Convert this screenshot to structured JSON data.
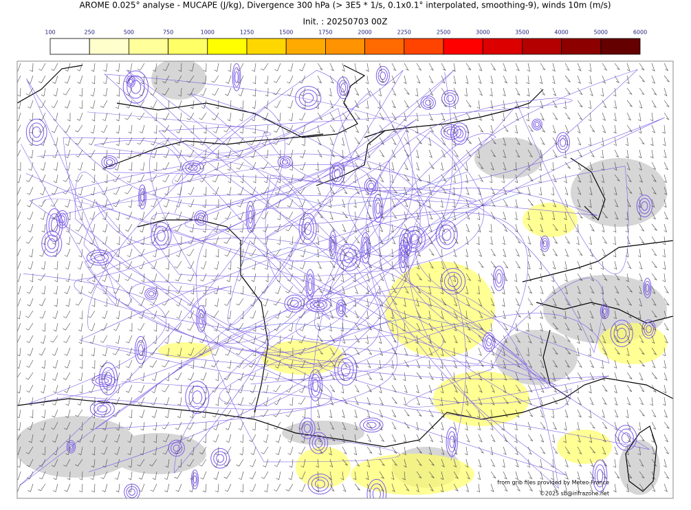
{
  "header": {
    "title": "AROME 0.025° analyse - MUCAPE (J/kg), Divergence 300 hPa (> 3E5 * 1/s, 0.1x0.1° interpolated, smoothing-9), winds 10m (m/s)",
    "init": "Init. : 20250703 00Z"
  },
  "colorbar": {
    "ticks": [
      100,
      250,
      500,
      750,
      1000,
      1250,
      1500,
      1750,
      2000,
      2250,
      2500,
      3000,
      3500,
      4000,
      5000,
      6000
    ],
    "colors": [
      "#ffffff",
      "#ffffcc",
      "#ffff99",
      "#ffff66",
      "#ffff00",
      "#ffd700",
      "#ffaa00",
      "#ff9200",
      "#ff6a00",
      "#ff4400",
      "#ff0000",
      "#dd0000",
      "#b40000",
      "#8c0000",
      "#640000"
    ]
  },
  "credits": {
    "source": "from grib files provided by Meteo-France",
    "copyright": "©2025 sb@infrazone.net"
  }
}
